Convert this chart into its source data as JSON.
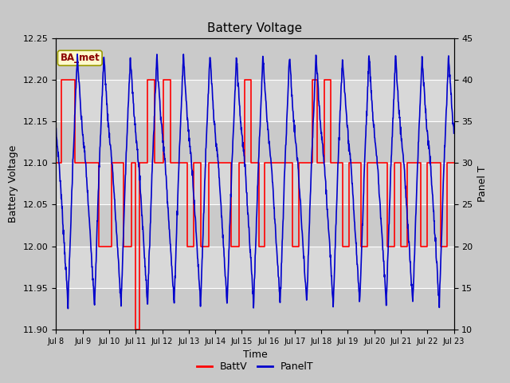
{
  "title": "Battery Voltage",
  "xlabel": "Time",
  "ylabel_left": "Battery Voltage",
  "ylabel_right": "Panel T",
  "ylim_left": [
    11.9,
    12.25
  ],
  "ylim_right": [
    10,
    45
  ],
  "yticks_left": [
    11.9,
    11.95,
    12.0,
    12.05,
    12.1,
    12.15,
    12.2,
    12.25
  ],
  "yticks_right": [
    10,
    15,
    20,
    25,
    30,
    35,
    40,
    45
  ],
  "xtick_labels": [
    "Jul 8",
    "Jul 9",
    "Jul 10",
    "Jul 11",
    "Jul 12",
    "Jul 13",
    "Jul 14",
    "Jul 15",
    "Jul 16",
    "Jul 17",
    "Jul 18",
    "Jul 19",
    "Jul 20",
    "Jul 21",
    "Jul 22",
    "Jul 23"
  ],
  "annotation_text": "BA_met",
  "annotation_color": "#8B0000",
  "annotation_bg": "#FFFACD",
  "annotation_border": "#999900",
  "fig_bg": "#C8C8C8",
  "plot_bg": "#D8D8D8",
  "band_color": "#C0C0C0",
  "batt_color": "#FF0000",
  "panel_color": "#0000CC",
  "legend_entries": [
    "BattV",
    "PanelT"
  ],
  "batt_x": [
    0.0,
    0.2,
    0.2,
    0.7,
    0.7,
    0.95,
    0.95,
    1.4,
    1.4,
    1.6,
    1.6,
    2.1,
    2.1,
    2.35,
    2.35,
    2.55,
    2.55,
    2.85,
    2.85,
    3.0,
    3.0,
    3.15,
    3.15,
    3.45,
    3.45,
    3.7,
    3.7,
    4.05,
    4.05,
    4.3,
    4.3,
    4.7,
    4.7,
    4.95,
    4.95,
    5.2,
    5.2,
    5.45,
    5.45,
    5.75,
    5.75,
    6.1,
    6.1,
    6.35,
    6.35,
    6.6,
    6.6,
    6.9,
    6.9,
    7.1,
    7.1,
    7.35,
    7.35,
    7.65,
    7.65,
    7.85,
    7.85,
    8.1,
    8.1,
    8.35,
    8.35,
    8.65,
    8.65,
    8.9,
    8.9,
    9.15,
    9.15,
    9.4,
    9.4,
    9.65,
    9.65,
    9.85,
    9.85,
    10.1,
    10.1,
    10.35,
    10.35,
    10.6,
    10.6,
    10.8,
    10.8,
    11.05,
    11.05,
    11.3,
    11.3,
    11.5,
    11.5,
    11.75,
    11.75,
    12.0,
    12.0,
    12.25,
    12.25,
    12.5,
    12.5,
    12.75,
    12.75,
    13.0,
    13.0,
    13.25,
    13.25,
    13.5,
    13.5,
    13.75,
    13.75,
    14.0,
    14.0,
    14.25,
    14.25,
    14.5,
    14.5,
    14.75,
    14.75,
    15.0
  ],
  "batt_y": [
    12.1,
    12.1,
    12.2,
    12.2,
    12.1,
    12.1,
    12.1,
    12.1,
    12.1,
    12.1,
    12.0,
    12.0,
    12.1,
    12.1,
    12.1,
    12.1,
    12.0,
    12.0,
    12.1,
    12.1,
    11.9,
    11.9,
    12.1,
    12.1,
    12.2,
    12.2,
    12.1,
    12.1,
    12.2,
    12.2,
    12.1,
    12.1,
    12.1,
    12.1,
    12.0,
    12.0,
    12.1,
    12.1,
    12.0,
    12.0,
    12.1,
    12.1,
    12.1,
    12.1,
    12.1,
    12.1,
    12.0,
    12.0,
    12.1,
    12.1,
    12.2,
    12.2,
    12.1,
    12.1,
    12.0,
    12.0,
    12.1,
    12.1,
    12.1,
    12.1,
    12.1,
    12.1,
    12.1,
    12.1,
    12.0,
    12.0,
    12.1,
    12.1,
    12.1,
    12.1,
    12.2,
    12.2,
    12.1,
    12.1,
    12.2,
    12.2,
    12.1,
    12.1,
    12.1,
    12.1,
    12.0,
    12.0,
    12.1,
    12.1,
    12.1,
    12.1,
    12.0,
    12.0,
    12.1,
    12.1,
    12.1,
    12.1,
    12.1,
    12.1,
    12.0,
    12.0,
    12.1,
    12.1,
    12.0,
    12.0,
    12.1,
    12.1,
    12.1,
    12.1,
    12.0,
    12.0,
    12.1,
    12.1,
    12.1,
    12.1,
    12.0,
    12.0,
    12.1,
    12.1
  ]
}
